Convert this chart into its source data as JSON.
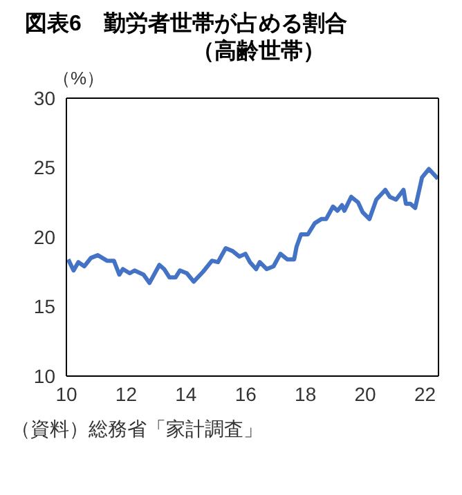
{
  "chart_data": {
    "type": "line",
    "title": "図表6　勤労者世帯が占める割合",
    "subtitle": "（高齢世帯）",
    "ylabel": "（%）",
    "annotations": [
      "（資料）総務省「家計調査」"
    ],
    "x": [
      10.06,
      10.24,
      10.4,
      10.6,
      10.82,
      11.05,
      11.36,
      11.59,
      11.77,
      11.89,
      12.12,
      12.28,
      12.58,
      12.78,
      13.11,
      13.27,
      13.45,
      13.65,
      13.8,
      14.03,
      14.26,
      14.57,
      14.87,
      15.07,
      15.33,
      15.56,
      15.79,
      15.99,
      16.14,
      16.35,
      16.47,
      16.7,
      16.93,
      17.16,
      17.39,
      17.62,
      17.7,
      17.85,
      18.08,
      18.31,
      18.53,
      18.69,
      18.92,
      19.07,
      19.22,
      19.3,
      19.53,
      19.76,
      19.91,
      20.14,
      20.37,
      20.67,
      20.82,
      21.03,
      21.28,
      21.36,
      21.51,
      21.67,
      21.9,
      22.13,
      22.43
    ],
    "series": [
      {
        "color": "#4472c4",
        "values": [
          18.4,
          17.6,
          18.2,
          17.9,
          18.5,
          18.7,
          18.3,
          18.3,
          17.3,
          17.7,
          17.4,
          17.6,
          17.3,
          16.7,
          18.0,
          17.7,
          17.1,
          17.1,
          17.6,
          17.4,
          16.8,
          17.5,
          18.3,
          18.2,
          19.2,
          19.0,
          18.6,
          18.8,
          18.2,
          17.7,
          18.2,
          17.7,
          17.9,
          18.8,
          18.4,
          18.4,
          19.3,
          20.2,
          20.2,
          21.0,
          21.3,
          21.3,
          22.2,
          21.9,
          22.3,
          21.9,
          22.9,
          22.5,
          21.8,
          21.3,
          22.7,
          23.4,
          22.9,
          22.7,
          23.4,
          22.4,
          22.4,
          22.1,
          24.3,
          24.9,
          24.2
        ]
      }
    ],
    "xlim": [
      10,
      22.45
    ],
    "xticks": [
      10,
      12,
      14,
      16,
      18,
      20,
      22
    ],
    "ylim": [
      10,
      30
    ],
    "yticks": [
      10,
      15,
      20,
      25,
      30
    ],
    "grid": false,
    "legend": false,
    "marker": "none",
    "line_style": "solid"
  }
}
